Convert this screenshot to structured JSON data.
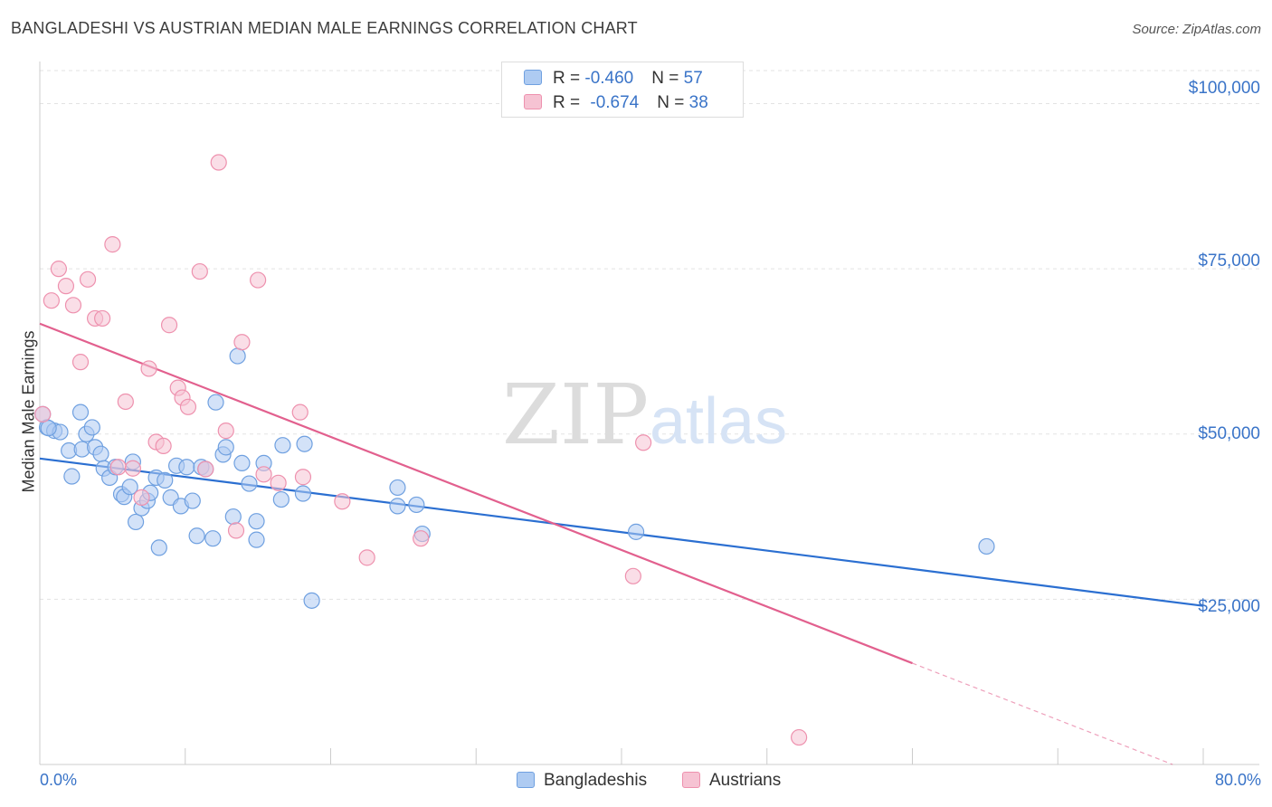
{
  "chart_data": {
    "type": "scatter",
    "title": "BANGLADESHI VS AUSTRIAN MEDIAN MALE EARNINGS CORRELATION CHART",
    "source": "Source: ZipAtlas.com",
    "xlabel": "",
    "ylabel": "Median Male Earnings",
    "xlim": [
      0,
      80
    ],
    "ylim": [
      0,
      105000
    ],
    "x_tick_labels": [
      "0.0%",
      "80.0%"
    ],
    "y_ticks": [
      {
        "value": 25000,
        "label": "$25,000"
      },
      {
        "value": 50000,
        "label": "$50,000"
      },
      {
        "value": 75000,
        "label": "$75,000"
      },
      {
        "value": 100000,
        "label": "$100,000"
      }
    ],
    "watermark": {
      "zip": "ZIP",
      "atlas": "atlas"
    },
    "legend": [
      {
        "name": "Bangladeshis",
        "r_label": "R = ",
        "r": "-0.460",
        "n_label": "N = ",
        "n": "57"
      },
      {
        "name": "Austrians",
        "r_label": "R = ",
        "r": "-0.674",
        "n_label": "N = ",
        "n": "38"
      }
    ],
    "series": [
      {
        "name": "Bangladeshis",
        "color": "#6fa0e0",
        "fill": "#aecbf2",
        "line_color": "#2b6fd1",
        "trend": {
          "x0": 0,
          "y0": 46300,
          "x1": 80,
          "y1": 24000
        },
        "points": [
          [
            0.2,
            53000
          ],
          [
            0.5,
            51000
          ],
          [
            1.0,
            50500
          ],
          [
            1.4,
            50300
          ],
          [
            2.0,
            47500
          ],
          [
            2.2,
            43600
          ],
          [
            2.8,
            53300
          ],
          [
            2.9,
            47700
          ],
          [
            3.2,
            50000
          ],
          [
            3.6,
            51000
          ],
          [
            3.8,
            48000
          ],
          [
            4.2,
            47000
          ],
          [
            4.4,
            44800
          ],
          [
            4.8,
            43400
          ],
          [
            5.2,
            45000
          ],
          [
            5.6,
            40900
          ],
          [
            5.8,
            40500
          ],
          [
            6.2,
            42000
          ],
          [
            6.4,
            45800
          ],
          [
            6.6,
            36700
          ],
          [
            7.0,
            38800
          ],
          [
            7.4,
            39900
          ],
          [
            7.6,
            41100
          ],
          [
            8.0,
            43400
          ],
          [
            8.2,
            32800
          ],
          [
            8.6,
            43000
          ],
          [
            9.0,
            40400
          ],
          [
            9.4,
            45200
          ],
          [
            9.7,
            39100
          ],
          [
            10.1,
            45000
          ],
          [
            10.5,
            39900
          ],
          [
            10.8,
            34600
          ],
          [
            11.1,
            45000
          ],
          [
            11.4,
            44700
          ],
          [
            11.9,
            34200
          ],
          [
            12.1,
            54800
          ],
          [
            12.6,
            46900
          ],
          [
            12.8,
            48000
          ],
          [
            13.3,
            37500
          ],
          [
            13.9,
            45600
          ],
          [
            14.4,
            42500
          ],
          [
            14.9,
            36800
          ],
          [
            14.9,
            34000
          ],
          [
            15.4,
            45600
          ],
          [
            16.6,
            40100
          ],
          [
            16.7,
            48300
          ],
          [
            18.1,
            41000
          ],
          [
            18.2,
            48500
          ],
          [
            18.7,
            24800
          ],
          [
            13.6,
            61800
          ],
          [
            24.6,
            41900
          ],
          [
            24.6,
            39100
          ],
          [
            25.9,
            39300
          ],
          [
            26.3,
            34900
          ],
          [
            41.0,
            35200
          ],
          [
            65.1,
            33000
          ],
          [
            0.6,
            50900
          ]
        ]
      },
      {
        "name": "Austrians",
        "color": "#ee91ae",
        "fill": "#f6c3d3",
        "line_color": "#e2608e",
        "trend": {
          "x0": 0,
          "y0": 66700,
          "x1": 80,
          "y1": -1800
        },
        "trend_solid_end_x": 60,
        "points": [
          [
            0.2,
            53000
          ],
          [
            0.8,
            70200
          ],
          [
            1.3,
            75000
          ],
          [
            1.8,
            72400
          ],
          [
            2.3,
            69500
          ],
          [
            2.8,
            60900
          ],
          [
            3.3,
            73400
          ],
          [
            3.8,
            67500
          ],
          [
            4.3,
            67500
          ],
          [
            5.0,
            78700
          ],
          [
            5.4,
            45000
          ],
          [
            5.9,
            54900
          ],
          [
            6.4,
            44800
          ],
          [
            7.0,
            40400
          ],
          [
            7.5,
            59900
          ],
          [
            8.0,
            48800
          ],
          [
            8.5,
            48200
          ],
          [
            8.9,
            66500
          ],
          [
            9.5,
            57000
          ],
          [
            9.8,
            55500
          ],
          [
            10.2,
            54100
          ],
          [
            11.0,
            74600
          ],
          [
            11.4,
            44700
          ],
          [
            12.3,
            91100
          ],
          [
            12.8,
            50500
          ],
          [
            13.5,
            35400
          ],
          [
            13.9,
            63900
          ],
          [
            15.0,
            73300
          ],
          [
            15.4,
            43900
          ],
          [
            16.4,
            42600
          ],
          [
            17.9,
            53300
          ],
          [
            18.1,
            43500
          ],
          [
            20.8,
            39800
          ],
          [
            22.5,
            31300
          ],
          [
            26.2,
            34200
          ],
          [
            40.8,
            28500
          ],
          [
            41.5,
            48700
          ],
          [
            52.2,
            4100
          ]
        ]
      }
    ]
  }
}
